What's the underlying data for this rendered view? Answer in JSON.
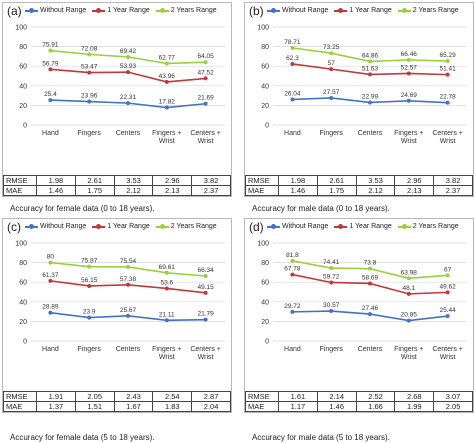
{
  "colors": {
    "without": "#4472c4",
    "one_year": "#c0393b",
    "two_years": "#9bcf3e"
  },
  "chart_data": [
    {
      "type": "line",
      "panel_label": "(a)",
      "categories": [
        "Hand",
        "Fingers",
        "Centers",
        "Fingers +\nWrist",
        "Centers +\nWrist"
      ],
      "ylim": [
        0,
        100
      ],
      "yticks": [
        0,
        20,
        40,
        60,
        80,
        100
      ],
      "grid": true,
      "legend": "top",
      "series": [
        {
          "name": "Without Range",
          "values": [
            25.4,
            23.96,
            22.31,
            17.82,
            21.69
          ]
        },
        {
          "name": "1 Year Range",
          "values": [
            56.79,
            53.47,
            53.93,
            43.96,
            47.52
          ]
        },
        {
          "name": "2 Years Range",
          "values": [
            75.91,
            72.08,
            69.42,
            62.77,
            64.05
          ]
        }
      ],
      "labels": [
        [
          "25.4",
          "23.96",
          "22.31",
          "17.82",
          "21.69"
        ],
        [
          "56.79",
          "53.47",
          "53.93",
          "43.96",
          "47.52"
        ],
        [
          "75.91",
          "72.08",
          "69.42",
          "62.77",
          "64.05"
        ]
      ],
      "table": [
        {
          "metric": "RMSE",
          "values": [
            "1.98",
            "2.61",
            "3.53",
            "2.96",
            "3.82"
          ]
        },
        {
          "metric": "MAE",
          "values": [
            "1.46",
            "1.75",
            "2.12",
            "2.13",
            "2.37"
          ]
        }
      ],
      "caption": "Accuracy for female data (0 to 18 years)."
    },
    {
      "type": "line",
      "panel_label": "(b)",
      "categories": [
        "Hand",
        "Fingers",
        "Centers",
        "Fingers +\nWrist",
        "Centers +\nWrist"
      ],
      "ylim": [
        0,
        100
      ],
      "yticks": [
        0,
        20,
        40,
        60,
        80,
        100
      ],
      "grid": true,
      "legend": "top",
      "series": [
        {
          "name": "Without Range",
          "values": [
            26.04,
            27.57,
            22.99,
            24.69,
            22.78
          ]
        },
        {
          "name": "1 Year Range",
          "values": [
            62.3,
            57,
            51.63,
            52.57,
            51.41
          ]
        },
        {
          "name": "2 Years Range",
          "values": [
            78.71,
            73.25,
            64.86,
            66.46,
            65.29
          ]
        }
      ],
      "labels": [
        [
          "26.04",
          "27.57",
          "22.99",
          "24.69",
          "22.78"
        ],
        [
          "62.3",
          "57",
          "51.63",
          "52.57",
          "51.41"
        ],
        [
          "78.71",
          "73.25",
          "64.86",
          "66.46",
          "65.29"
        ]
      ],
      "table": [
        {
          "metric": "RMSE",
          "values": [
            "1.98",
            "2.61",
            "3.53",
            "2.96",
            "3.82"
          ]
        },
        {
          "metric": "MAE",
          "values": [
            "1.46",
            "1.75",
            "2.12",
            "2.13",
            "2.37"
          ]
        }
      ],
      "caption": "Accuracy for male data (0 to 18 years)."
    },
    {
      "type": "line",
      "panel_label": "(c)",
      "categories": [
        "Hand",
        "Fingers",
        "Centers",
        "Fingers +\nWrist",
        "Centers +\nWrist"
      ],
      "ylim": [
        0,
        100
      ],
      "yticks": [
        0,
        20,
        40,
        60,
        80,
        100
      ],
      "grid": true,
      "legend": "top",
      "series": [
        {
          "name": "Without Range",
          "values": [
            28.89,
            23.9,
            25.67,
            21.11,
            21.79
          ]
        },
        {
          "name": "1 Year Range",
          "values": [
            61.37,
            56.15,
            57.38,
            53.6,
            49.15
          ]
        },
        {
          "name": "2 Years Range",
          "values": [
            80,
            75.87,
            75.54,
            69.61,
            66.34
          ]
        }
      ],
      "labels": [
        [
          "28.89",
          "23.9",
          "25.67",
          "21.11",
          "21.79"
        ],
        [
          "61.37",
          "56.15",
          "57.38",
          "53.6",
          "49.15"
        ],
        [
          "80",
          "75.87",
          "75.54",
          "69.61",
          "66.34"
        ]
      ],
      "table": [
        {
          "metric": "RMSE",
          "values": [
            "1.91",
            "2.05",
            "2.43",
            "2.54",
            "2.87"
          ]
        },
        {
          "metric": "MAE",
          "values": [
            "1.37",
            "1.51",
            "1.67",
            "1.83",
            "2.04"
          ]
        }
      ],
      "caption": "Accuracy for female data (5 to 18 years)."
    },
    {
      "type": "line",
      "panel_label": "(d)",
      "categories": [
        "Hand",
        "Fingers",
        "Centers",
        "Fingers +\nWrist",
        "Centers +\nWrist"
      ],
      "ylim": [
        0,
        100
      ],
      "yticks": [
        0,
        20,
        40,
        60,
        80,
        100
      ],
      "grid": true,
      "legend": "top",
      "series": [
        {
          "name": "Without Range",
          "values": [
            29.72,
            30.57,
            27.46,
            20.85,
            25.44
          ]
        },
        {
          "name": "1 Year Range",
          "values": [
            67.78,
            59.72,
            58.69,
            48.1,
            49.62
          ]
        },
        {
          "name": "2 Years Range",
          "values": [
            81.8,
            74.41,
            73.8,
            63.98,
            67
          ]
        }
      ],
      "labels": [
        [
          "29.72",
          "30.57",
          "27.46",
          "20.85",
          "25.44"
        ],
        [
          "67.78",
          "59.72",
          "58.69",
          "48.1",
          "49.62"
        ],
        [
          "81.8",
          "74.41",
          "73.8",
          "63.98",
          "67"
        ]
      ],
      "table": [
        {
          "metric": "RMSE",
          "values": [
            "1.61",
            "2.14",
            "2.52",
            "2.68",
            "3.07"
          ]
        },
        {
          "metric": "MAE",
          "values": [
            "1.17",
            "1.46",
            "1.66",
            "1.99",
            "2.05"
          ]
        }
      ],
      "caption": "Accuracy for male data (5 to 18 years)."
    }
  ]
}
